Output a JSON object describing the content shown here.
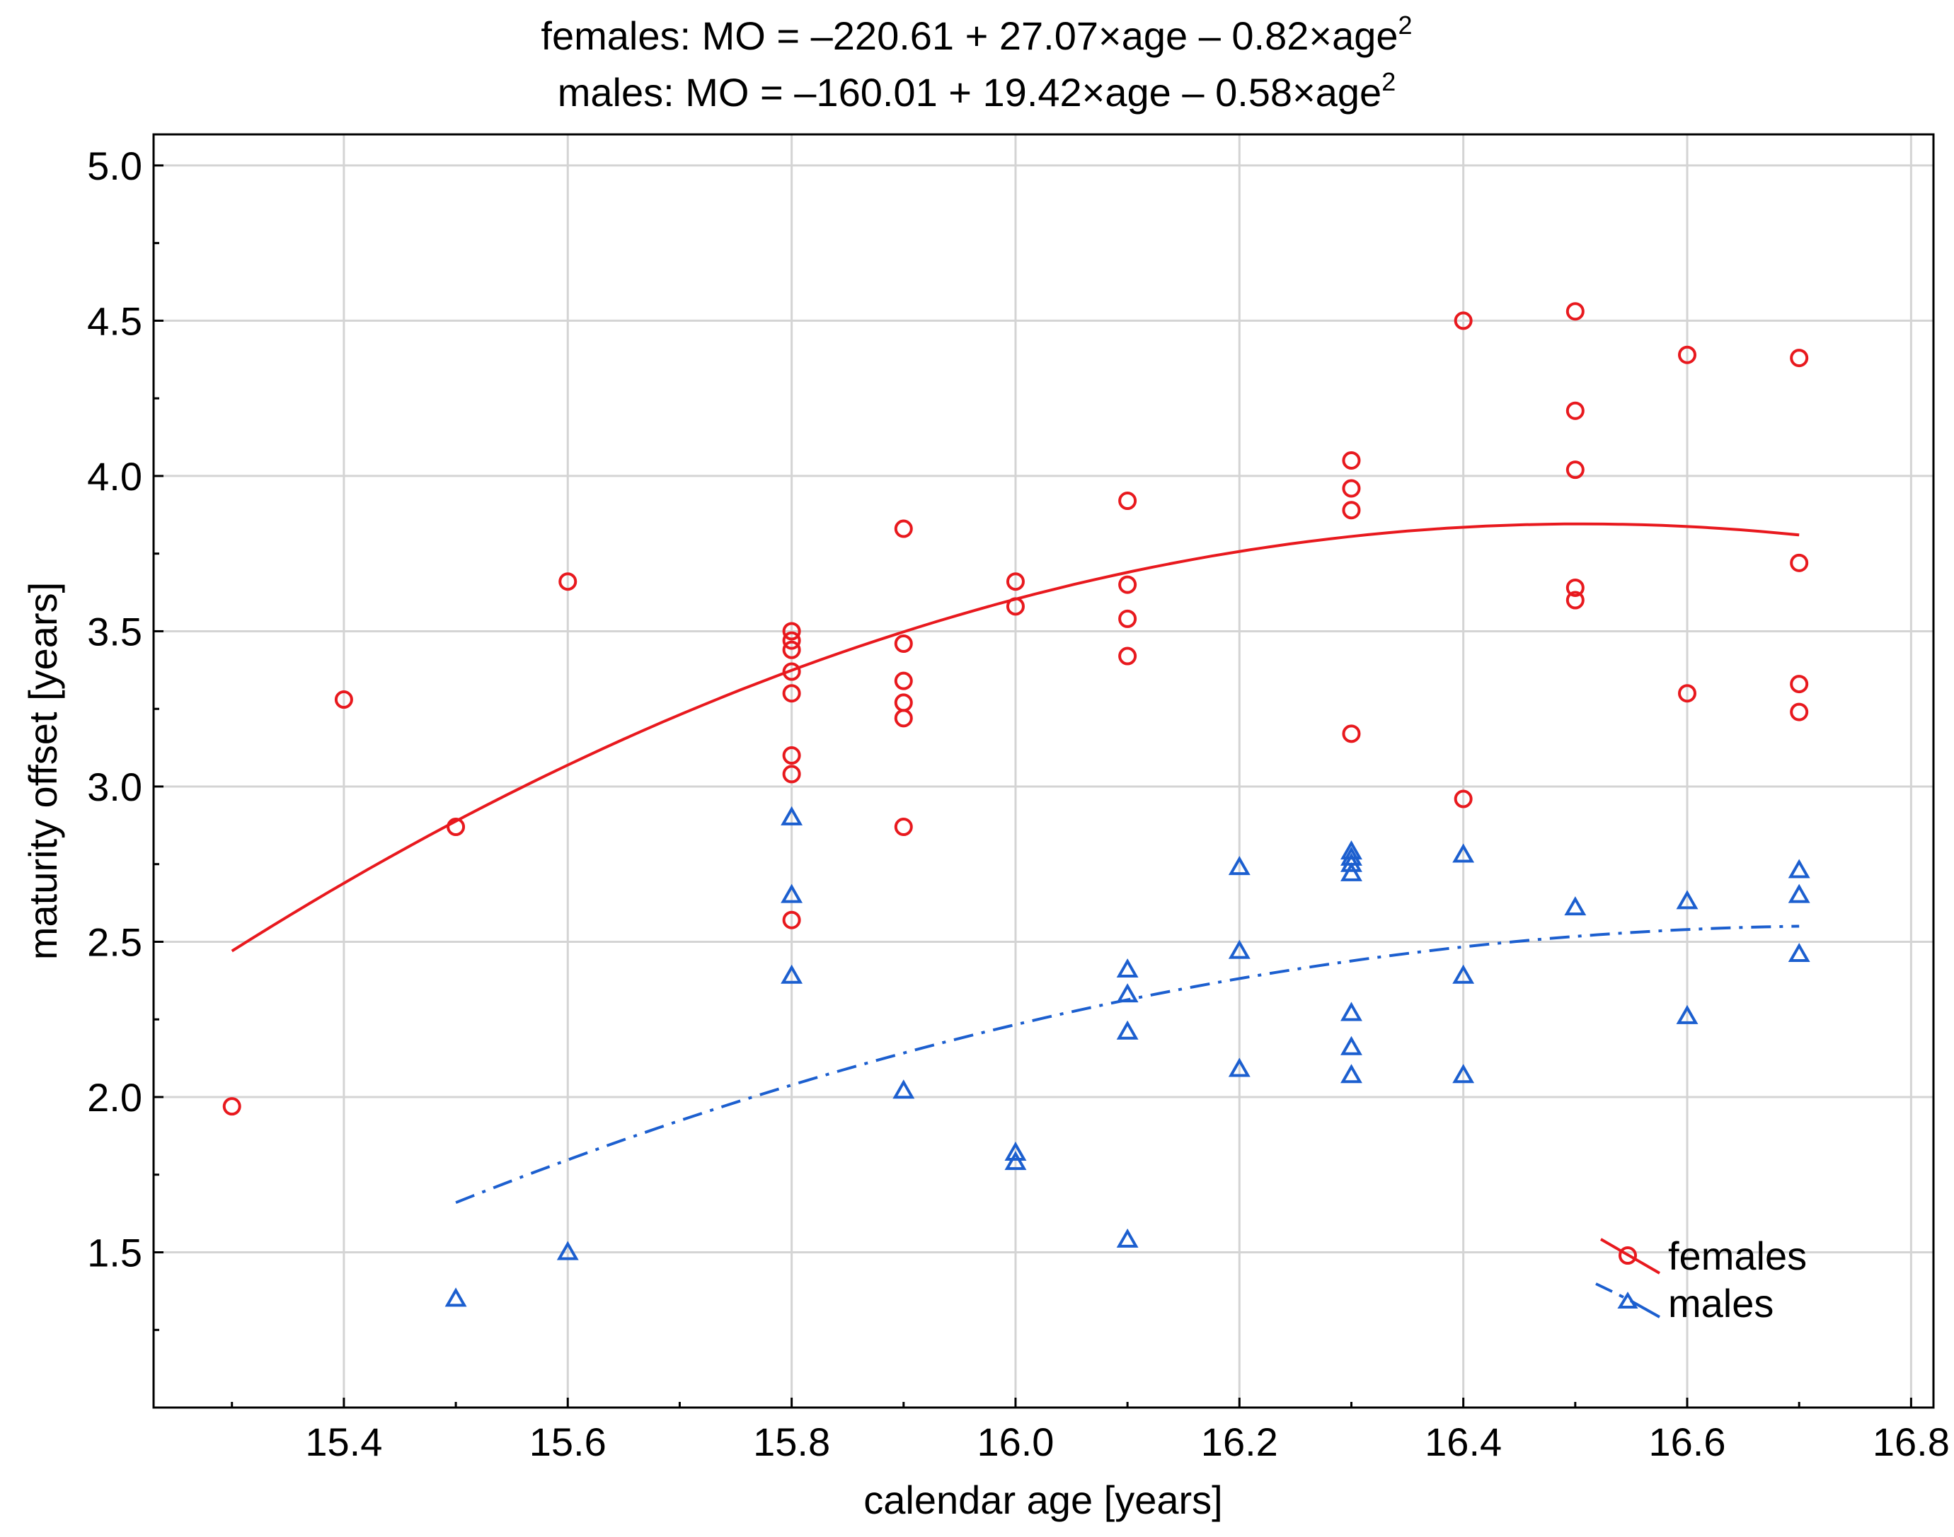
{
  "chart_data": {
    "type": "scatter",
    "title_lines": [
      {
        "prefix": "females: MO = –220.61 + 27.07×age – 0.82×age",
        "sup": "2"
      },
      {
        "prefix": "males: MO = –160.01 + 19.42×age – 0.58×age",
        "sup": "2"
      }
    ],
    "xlabel": "calendar age [years]",
    "ylabel": "maturity offset [years]",
    "xlim": [
      15.23,
      16.82
    ],
    "ylim": [
      1.0,
      5.1
    ],
    "x_ticks": [
      15.4,
      15.6,
      15.8,
      16.0,
      16.2,
      16.4,
      16.6,
      16.8
    ],
    "x_tick_labels": [
      "15.4",
      "15.6",
      "15.8",
      "16.0",
      "16.2",
      "16.4",
      "16.6",
      "16.8"
    ],
    "y_ticks": [
      1.5,
      2.0,
      2.5,
      3.0,
      3.5,
      4.0,
      4.5,
      5.0
    ],
    "y_tick_labels": [
      "1.5",
      "2.0",
      "2.5",
      "3.0",
      "3.5",
      "4.0",
      "4.5",
      "5.0"
    ],
    "grid": true,
    "legend_position": "bottom-right",
    "series": [
      {
        "name": "females",
        "marker": "circle",
        "color": "#e8191e",
        "line_style": "solid",
        "fit": {
          "a": -220.61,
          "b": 27.07,
          "c": -0.82,
          "x_range": [
            15.3,
            16.7
          ],
          "y_range": [
            2.47,
            3.81
          ]
        },
        "points": [
          [
            15.3,
            1.97
          ],
          [
            15.4,
            3.28
          ],
          [
            15.5,
            2.87
          ],
          [
            15.6,
            3.66
          ],
          [
            15.8,
            3.5
          ],
          [
            15.8,
            3.47
          ],
          [
            15.8,
            3.44
          ],
          [
            15.8,
            3.37
          ],
          [
            15.8,
            3.3
          ],
          [
            15.8,
            3.1
          ],
          [
            15.8,
            3.04
          ],
          [
            15.8,
            2.57
          ],
          [
            15.9,
            3.83
          ],
          [
            15.9,
            3.46
          ],
          [
            15.9,
            3.34
          ],
          [
            15.9,
            3.27
          ],
          [
            15.9,
            3.22
          ],
          [
            15.9,
            2.87
          ],
          [
            16.0,
            3.66
          ],
          [
            16.0,
            3.58
          ],
          [
            16.1,
            3.92
          ],
          [
            16.1,
            3.65
          ],
          [
            16.1,
            3.54
          ],
          [
            16.1,
            3.42
          ],
          [
            16.3,
            4.05
          ],
          [
            16.3,
            3.96
          ],
          [
            16.3,
            3.89
          ],
          [
            16.3,
            3.17
          ],
          [
            16.4,
            4.5
          ],
          [
            16.4,
            2.96
          ],
          [
            16.5,
            4.53
          ],
          [
            16.5,
            4.21
          ],
          [
            16.5,
            4.02
          ],
          [
            16.5,
            3.64
          ],
          [
            16.5,
            3.6
          ],
          [
            16.6,
            4.39
          ],
          [
            16.6,
            3.3
          ],
          [
            16.7,
            4.38
          ],
          [
            16.7,
            3.72
          ],
          [
            16.7,
            3.33
          ],
          [
            16.7,
            3.24
          ]
        ]
      },
      {
        "name": "males",
        "marker": "triangle",
        "color": "#1c5fcf",
        "line_style": "dash-dot",
        "fit": {
          "a": -160.01,
          "b": 19.42,
          "c": -0.58,
          "x_range": [
            15.5,
            16.7
          ],
          "y_range": [
            1.66,
            2.55
          ]
        },
        "points": [
          [
            15.5,
            1.35
          ],
          [
            15.6,
            1.5
          ],
          [
            15.8,
            2.9
          ],
          [
            15.8,
            2.65
          ],
          [
            15.8,
            2.39
          ],
          [
            15.9,
            2.02
          ],
          [
            16.0,
            1.82
          ],
          [
            16.0,
            1.79
          ],
          [
            16.1,
            2.41
          ],
          [
            16.1,
            2.33
          ],
          [
            16.1,
            2.21
          ],
          [
            16.1,
            1.54
          ],
          [
            16.2,
            2.74
          ],
          [
            16.2,
            2.47
          ],
          [
            16.2,
            2.09
          ],
          [
            16.3,
            2.79
          ],
          [
            16.3,
            2.77
          ],
          [
            16.3,
            2.75
          ],
          [
            16.3,
            2.72
          ],
          [
            16.3,
            2.27
          ],
          [
            16.3,
            2.16
          ],
          [
            16.3,
            2.07
          ],
          [
            16.4,
            2.78
          ],
          [
            16.4,
            2.39
          ],
          [
            16.4,
            2.07
          ],
          [
            16.5,
            2.61
          ],
          [
            16.6,
            2.63
          ],
          [
            16.6,
            2.26
          ],
          [
            16.7,
            2.73
          ],
          [
            16.7,
            2.65
          ],
          [
            16.7,
            2.46
          ]
        ]
      }
    ]
  }
}
